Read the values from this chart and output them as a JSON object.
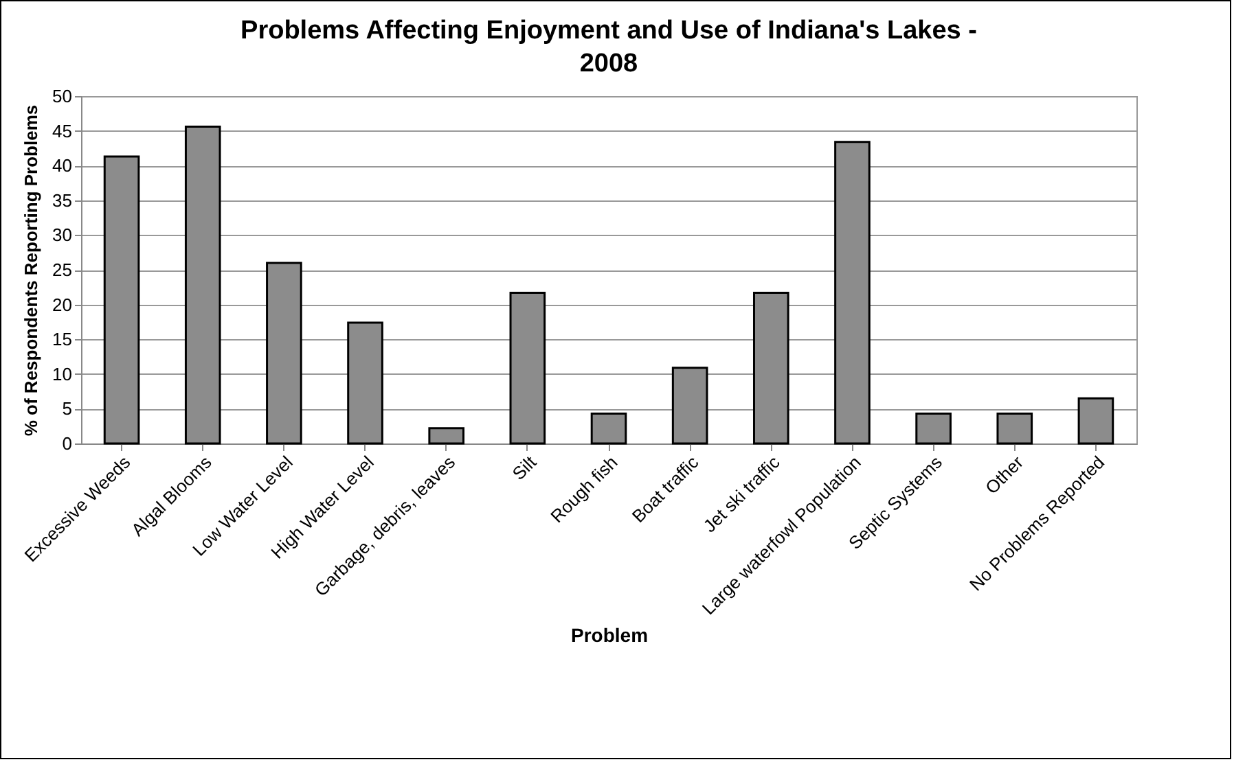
{
  "chart_data": {
    "type": "bar",
    "title": "Problems Affecting Enjoyment and Use of Indiana's Lakes - 2008",
    "xlabel": "Problem",
    "ylabel": "% of Respondents Reporting Problems",
    "categories": [
      "Excessive Weeds",
      "Algal Blooms",
      "Low Water Level",
      "High Water Level",
      "Garbage, debris, leaves",
      "Silt",
      "Rough fish",
      "Boat traffic",
      "Jet ski traffic",
      "Large waterfowl Population",
      "Septic Systems",
      "Other",
      "No Problems Reported"
    ],
    "values": [
      41.3,
      45.6,
      26.0,
      17.4,
      2.2,
      21.7,
      4.3,
      10.9,
      21.7,
      43.4,
      4.3,
      4.3,
      6.5
    ],
    "color": "#8c8c8c",
    "ylim": [
      0,
      50
    ],
    "yticks": [
      0,
      5,
      10,
      15,
      20,
      25,
      30,
      35,
      40,
      45,
      50
    ],
    "grid": "y"
  }
}
